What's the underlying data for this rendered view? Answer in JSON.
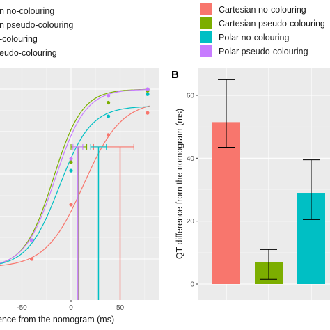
{
  "legend": {
    "left_items": [
      {
        "label": "n no-colouring",
        "color": "#F8766D"
      },
      {
        "label": "n pseudo-colouring",
        "color": "#7CAE00"
      },
      {
        "label": "-colouring",
        "color": "#00BFC4"
      },
      {
        "label": "eudo-colouring",
        "color": "#C77CFF"
      }
    ],
    "right_items": [
      {
        "label": "Cartesian no-colouring",
        "color": "#F8766D"
      },
      {
        "label": "Cartesian pseudo-colouring",
        "color": "#7CAE00"
      },
      {
        "label": "Polar no-colouring",
        "color": "#00BFC4"
      },
      {
        "label": "Polar pseudo-colouring",
        "color": "#C77CFF"
      }
    ]
  },
  "chart_data": [
    {
      "type": "line",
      "xlabel": "ence from the nomogram (ms)",
      "xlim": [
        -90,
        85
      ],
      "ylim": [
        -0.05,
        1.0
      ],
      "x_ticks": [
        -50,
        0,
        50
      ],
      "x_tick_labels": [
        "-50",
        "0",
        "50"
      ],
      "grid": true,
      "series": [
        {
          "name": "Cartesian no-colouring",
          "color": "#F8766D",
          "curve": {
            "x0": 13,
            "k": 0.052,
            "ymin": -0.05,
            "ymax": 0.93
          },
          "points_x": [
            -40,
            0,
            38,
            78
          ],
          "points_y": [
            0.0,
            0.32,
            0.73,
            0.86
          ],
          "threshold_x": 50,
          "errorbar": [
            23,
            64
          ],
          "errorbar_y": 0.66
        },
        {
          "name": "Cartesian pseudo-colouring",
          "color": "#7CAE00",
          "curve": {
            "x0": -18,
            "k": 0.068,
            "ymin": -0.05,
            "ymax": 1.0
          },
          "points_x": [
            -40,
            0,
            38,
            78
          ],
          "points_y": [
            0.11,
            0.57,
            0.92,
            0.99
          ],
          "threshold_x": 8,
          "errorbar": [
            0,
            16
          ],
          "errorbar_y": 0.66
        },
        {
          "name": "Polar no-colouring",
          "color": "#00BFC4",
          "curve": {
            "x0": -12,
            "k": 0.062,
            "ymin": -0.05,
            "ymax": 0.9
          },
          "points_x": [
            -40,
            0,
            38,
            78
          ],
          "points_y": [
            0.11,
            0.52,
            0.84,
            0.97
          ],
          "threshold_x": 28,
          "errorbar": [
            20,
            36
          ],
          "errorbar_y": 0.66
        },
        {
          "name": "Polar pseudo-colouring",
          "color": "#C77CFF",
          "curve": {
            "x0": -16,
            "k": 0.065,
            "ymin": -0.05,
            "ymax": 1.0
          },
          "points_x": [
            -40,
            0,
            38,
            78
          ],
          "points_y": [
            0.11,
            0.59,
            0.96,
            1.0
          ],
          "threshold_x": 7,
          "errorbar": [
            2,
            12
          ],
          "errorbar_y": 0.66
        }
      ]
    },
    {
      "type": "bar",
      "panel_label": "B",
      "ylabel": "QT difference from the nomogram (ms)",
      "ylim": [
        -2,
        66
      ],
      "y_ticks": [
        0,
        20,
        40,
        60
      ],
      "y_tick_labels": [
        "0",
        "20",
        "40",
        "60"
      ],
      "grid": true,
      "categories": [
        "Cartesian no-colouring",
        "Cartesian pseudo-colouring",
        "Polar no-colouring",
        "Polar pseudo-colouring"
      ],
      "values": [
        51.5,
        7,
        29,
        null
      ],
      "errors_low": [
        43.5,
        1.5,
        20.5,
        null
      ],
      "errors_high": [
        65,
        11,
        39.5,
        null
      ],
      "colors": [
        "#F8766D",
        "#7CAE00",
        "#00BFC4",
        "#C77CFF"
      ]
    }
  ]
}
